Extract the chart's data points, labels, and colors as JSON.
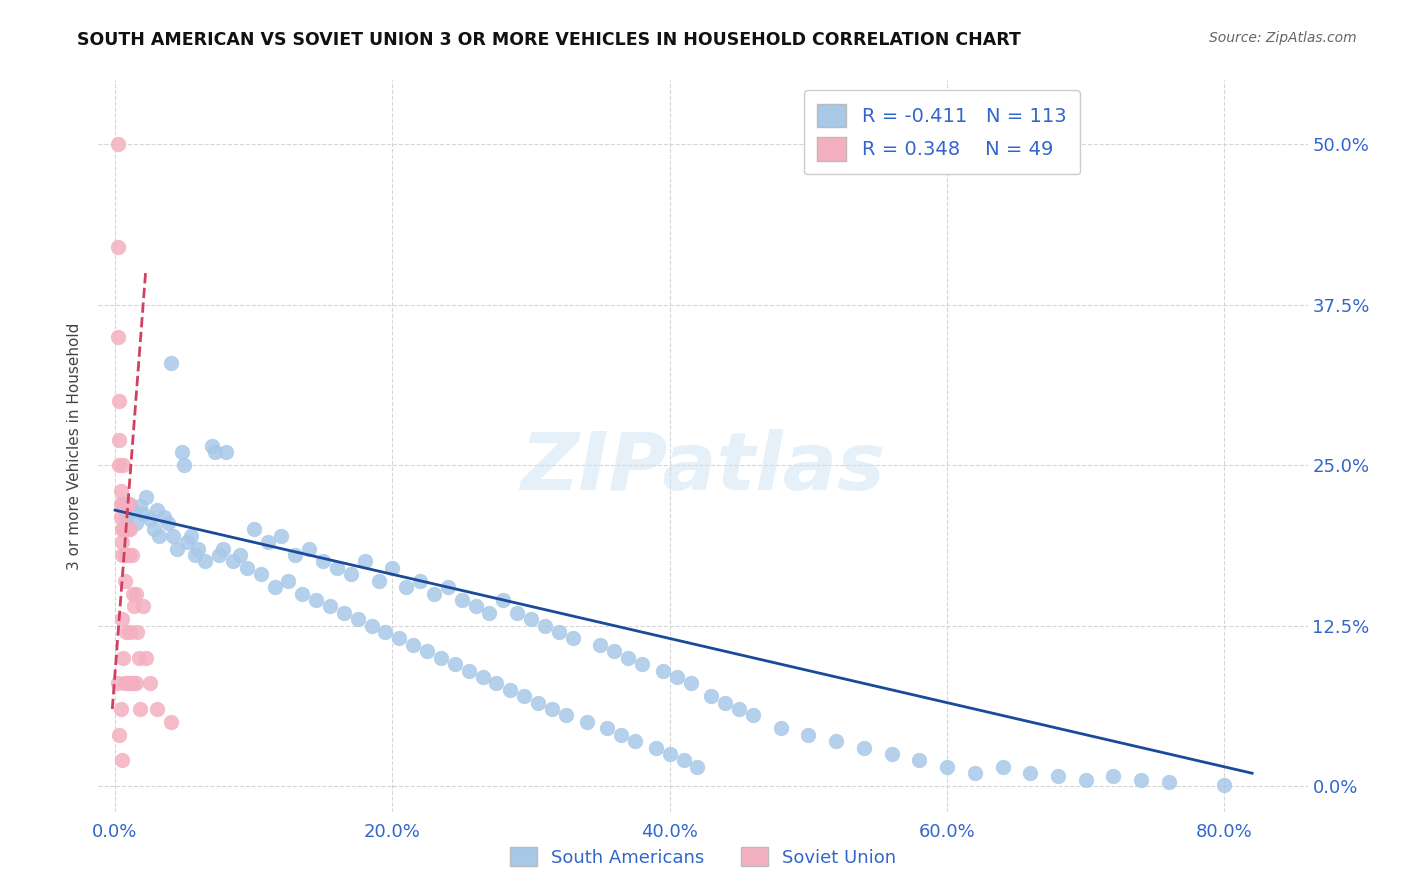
{
  "title": "SOUTH AMERICAN VS SOVIET UNION 3 OR MORE VEHICLES IN HOUSEHOLD CORRELATION CHART",
  "source": "Source: ZipAtlas.com",
  "ylabel": "3 or more Vehicles in Household",
  "blue_R": -0.411,
  "blue_N": 113,
  "pink_R": 0.348,
  "pink_N": 49,
  "blue_color": "#a8c8e8",
  "pink_color": "#f4b0c0",
  "blue_line_color": "#1a4a9a",
  "pink_line_color": "#d04060",
  "watermark": "ZIPatlas",
  "xtick_vals": [
    0.0,
    0.2,
    0.4,
    0.6,
    0.8
  ],
  "ytick_vals": [
    0.0,
    0.125,
    0.25,
    0.375,
    0.5
  ],
  "xlim": [
    -0.012,
    0.86
  ],
  "ylim": [
    -0.02,
    0.55
  ],
  "blue_x": [
    0.008,
    0.01,
    0.012,
    0.015,
    0.018,
    0.02,
    0.022,
    0.025,
    0.028,
    0.03,
    0.032,
    0.035,
    0.038,
    0.04,
    0.042,
    0.045,
    0.048,
    0.05,
    0.052,
    0.055,
    0.058,
    0.06,
    0.065,
    0.07,
    0.072,
    0.075,
    0.078,
    0.08,
    0.085,
    0.09,
    0.095,
    0.1,
    0.105,
    0.11,
    0.115,
    0.12,
    0.125,
    0.13,
    0.135,
    0.14,
    0.145,
    0.15,
    0.155,
    0.16,
    0.165,
    0.17,
    0.175,
    0.18,
    0.185,
    0.19,
    0.195,
    0.2,
    0.205,
    0.21,
    0.215,
    0.22,
    0.225,
    0.23,
    0.235,
    0.24,
    0.245,
    0.25,
    0.255,
    0.26,
    0.265,
    0.27,
    0.275,
    0.28,
    0.285,
    0.29,
    0.295,
    0.3,
    0.305,
    0.31,
    0.315,
    0.32,
    0.325,
    0.33,
    0.34,
    0.35,
    0.355,
    0.36,
    0.365,
    0.37,
    0.375,
    0.38,
    0.39,
    0.395,
    0.4,
    0.405,
    0.41,
    0.415,
    0.42,
    0.43,
    0.44,
    0.45,
    0.46,
    0.48,
    0.5,
    0.52,
    0.54,
    0.56,
    0.58,
    0.6,
    0.62,
    0.64,
    0.66,
    0.68,
    0.7,
    0.72,
    0.74,
    0.76,
    0.8
  ],
  "blue_y": [
    0.21,
    0.22,
    0.215,
    0.205,
    0.218,
    0.212,
    0.225,
    0.208,
    0.2,
    0.215,
    0.195,
    0.21,
    0.205,
    0.33,
    0.195,
    0.185,
    0.26,
    0.25,
    0.19,
    0.195,
    0.18,
    0.185,
    0.175,
    0.265,
    0.26,
    0.18,
    0.185,
    0.26,
    0.175,
    0.18,
    0.17,
    0.2,
    0.165,
    0.19,
    0.155,
    0.195,
    0.16,
    0.18,
    0.15,
    0.185,
    0.145,
    0.175,
    0.14,
    0.17,
    0.135,
    0.165,
    0.13,
    0.175,
    0.125,
    0.16,
    0.12,
    0.17,
    0.115,
    0.155,
    0.11,
    0.16,
    0.105,
    0.15,
    0.1,
    0.155,
    0.095,
    0.145,
    0.09,
    0.14,
    0.085,
    0.135,
    0.08,
    0.145,
    0.075,
    0.135,
    0.07,
    0.13,
    0.065,
    0.125,
    0.06,
    0.12,
    0.055,
    0.115,
    0.05,
    0.11,
    0.045,
    0.105,
    0.04,
    0.1,
    0.035,
    0.095,
    0.03,
    0.09,
    0.025,
    0.085,
    0.02,
    0.08,
    0.015,
    0.07,
    0.065,
    0.06,
    0.055,
    0.045,
    0.04,
    0.035,
    0.03,
    0.025,
    0.02,
    0.015,
    0.01,
    0.015,
    0.01,
    0.008,
    0.005,
    0.008,
    0.005,
    0.003,
    0.001
  ],
  "pink_x": [
    0.002,
    0.002,
    0.002,
    0.002,
    0.003,
    0.003,
    0.003,
    0.003,
    0.004,
    0.004,
    0.004,
    0.004,
    0.005,
    0.005,
    0.005,
    0.005,
    0.005,
    0.006,
    0.006,
    0.006,
    0.006,
    0.007,
    0.007,
    0.007,
    0.008,
    0.008,
    0.008,
    0.009,
    0.009,
    0.01,
    0.01,
    0.01,
    0.011,
    0.011,
    0.012,
    0.012,
    0.013,
    0.013,
    0.014,
    0.015,
    0.015,
    0.016,
    0.017,
    0.018,
    0.02,
    0.022,
    0.025,
    0.03,
    0.04
  ],
  "pink_y": [
    0.5,
    0.42,
    0.35,
    0.08,
    0.3,
    0.27,
    0.25,
    0.04,
    0.23,
    0.22,
    0.21,
    0.06,
    0.2,
    0.19,
    0.18,
    0.13,
    0.02,
    0.25,
    0.22,
    0.2,
    0.1,
    0.18,
    0.16,
    0.08,
    0.22,
    0.18,
    0.12,
    0.2,
    0.08,
    0.22,
    0.18,
    0.08,
    0.2,
    0.12,
    0.18,
    0.08,
    0.15,
    0.08,
    0.14,
    0.15,
    0.08,
    0.12,
    0.1,
    0.06,
    0.14,
    0.1,
    0.08,
    0.06,
    0.05
  ]
}
